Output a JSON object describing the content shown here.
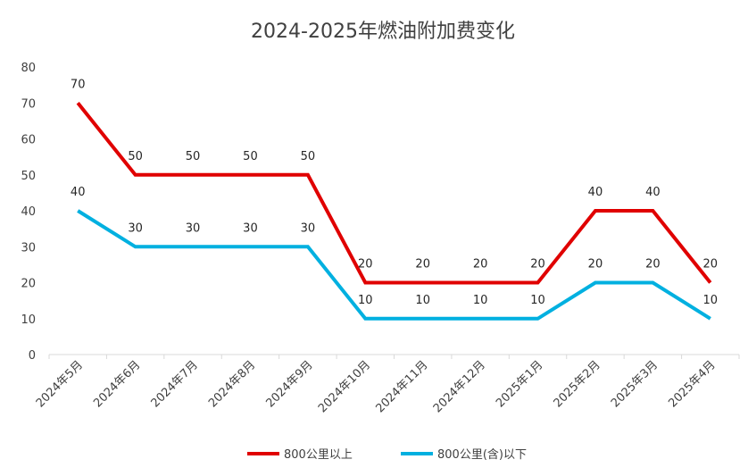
{
  "chart_data": {
    "type": "line",
    "title": "2024-2025年燃油附加费变化",
    "categories": [
      "2024年5月",
      "2024年6月",
      "2024年7月",
      "2024年8月",
      "2024年9月",
      "2024年10月",
      "2024年11月",
      "2024年12月",
      "2025年1月",
      "2025年2月",
      "2025年3月",
      "2025年4月"
    ],
    "ylim": [
      0,
      80
    ],
    "yticks": [
      0,
      10,
      20,
      30,
      40,
      50,
      60,
      70,
      80
    ],
    "legend_position": "bottom",
    "series": [
      {
        "name": "800公里以上",
        "color": "#e00000",
        "values": [
          70,
          50,
          50,
          50,
          50,
          20,
          20,
          20,
          20,
          40,
          40,
          20
        ]
      },
      {
        "name": "800公里(含)以下",
        "color": "#00b0e0",
        "values": [
          40,
          30,
          30,
          30,
          30,
          10,
          10,
          10,
          10,
          20,
          20,
          10
        ]
      }
    ]
  }
}
